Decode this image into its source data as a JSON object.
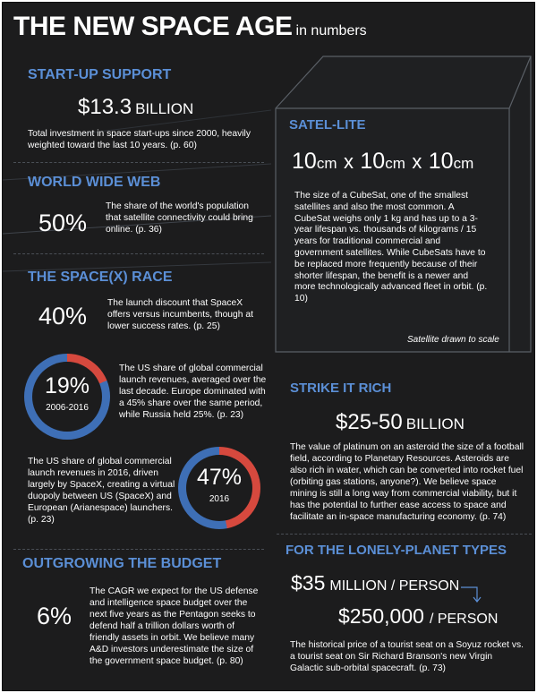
{
  "title": {
    "main": "THE NEW SPACE AGE",
    "sub": "in numbers"
  },
  "startup": {
    "heading": "START-UP SUPPORT",
    "figure": "$13.3",
    "unit": "BILLION",
    "text": "Total investment in space start-ups since 2000, heavily weighted toward the last 10 years. (p. 60)"
  },
  "web": {
    "heading": "WORLD WIDE WEB",
    "figure": "50%",
    "text": "The share of the world's population that satellite connectivity could bring online. (p. 36)"
  },
  "race": {
    "heading": "THE SPACE(X) RACE",
    "figure": "40%",
    "text": "The launch discount that SpaceX offers versus incumbents, though at lower success rates. (p. 25)",
    "ring1": {
      "value": "19%",
      "label": "2006-2016",
      "fraction": 0.19,
      "text": "The US share of global commercial launch revenues, averaged over the last decade. Europe dominated with a 45% share over the same period, while Russia held 25%. (p. 23)"
    },
    "ring2": {
      "value": "47%",
      "label": "2016",
      "fraction": 0.47,
      "text": "The US share of global commercial launch revenues in 2016, driven largely by SpaceX, creating a virtual duopoly between US (SpaceX) and European (Arianespace) launchers. (p. 23)"
    }
  },
  "budget": {
    "heading": "OUTGROWING THE BUDGET",
    "figure": "6%",
    "text": "The CAGR we expect for the US defense and intelligence space budget over the next five years as the Pentagon seeks to defend half a trillion dollars worth of friendly assets in orbit. We believe many A&D investors underestimate the size of the government space budget. (p. 80)"
  },
  "satellite": {
    "heading": "SATEL-LITE",
    "dim1": "10",
    "u1": "cm",
    "x1": "x",
    "dim2": "10",
    "u2": "cm",
    "x2": "x",
    "dim3": "10",
    "u3": "cm",
    "text": "The size of a CubeSat, one of the smallest satellites and also the most common. A CubeSat weighs only 1 kg and has up to a 3-year lifespan vs. thousands of kilograms / 15 years for traditional commercial and government satellites. While CubeSats have to be replaced more frequently because of their shorter lifespan, the benefit is a newer and more technologically advanced fleet in orbit. (p. 10)",
    "caption": "Satellite drawn to scale"
  },
  "strike": {
    "heading": "STRIKE IT RICH",
    "figure": "$25-50",
    "unit": "BILLION",
    "text": "The value of platinum on an asteroid the size of a football field, according to Planetary Resources. Asteroids are also rich in water, which can be converted into rocket fuel (orbiting gas stations, anyone?). We believe space mining is still a long way from commercial viability, but it has the potential to further ease access to space and facilitate an in-space manufacturing economy. (p. 74)"
  },
  "lonely": {
    "heading": "FOR THE LONELY-PLANET TYPES",
    "figure1": "$35",
    "unit1": "MILLION / PERSON",
    "figure2": "$250,000",
    "unit2": "/ PERSON",
    "text": "The historical price of a tourist seat on a Soyuz rocket vs. a tourist seat on Sir Richard Branson's new Virgin Galactic sub-orbital spacecraft. (p. 73)"
  },
  "colors": {
    "background": "#1c1c1d",
    "accent_blue": "#5b8fd6",
    "ring_red": "#d6493e",
    "ring_blue": "#3e6fb6",
    "text": "#ffffff"
  }
}
